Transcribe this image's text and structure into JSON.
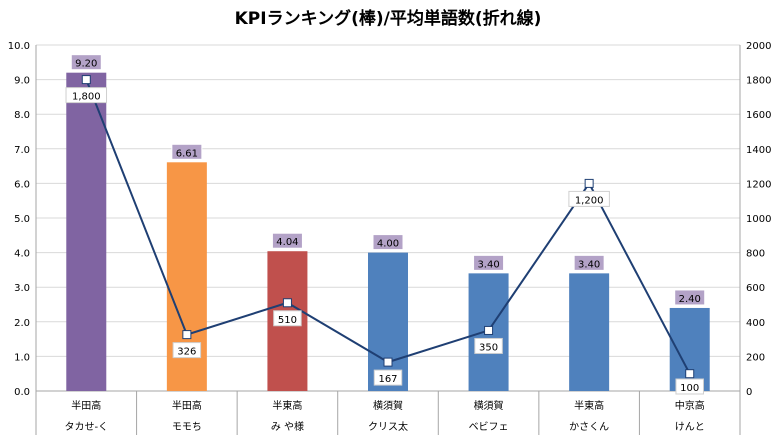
{
  "chart_data": {
    "type": "bar+line",
    "title": "KPIランキング(棒)/平均単語数(折れ線)",
    "categories": [
      [
        "半田高",
        "タカせ‐く"
      ],
      [
        "半田高",
        "モモち"
      ],
      [
        "半東高",
        "み や様"
      ],
      [
        "横須賀",
        "クリス太"
      ],
      [
        "横須賀",
        "ベビフェ"
      ],
      [
        "半東高",
        "かさくん"
      ],
      [
        "中京高",
        "けんと"
      ]
    ],
    "bar_series": {
      "axis": "left",
      "values": [
        9.2,
        6.61,
        4.04,
        4.0,
        3.4,
        3.4,
        2.4
      ],
      "labels": [
        "9.20",
        "6.61",
        "4.04",
        "4.00",
        "3.40",
        "3.40",
        "2.40"
      ],
      "colors": [
        "#8064a2",
        "#f79646",
        "#c0504d",
        "#4f81bd",
        "#4f81bd",
        "#4f81bd",
        "#4f81bd"
      ]
    },
    "line_series": {
      "axis": "right",
      "values": [
        1800,
        326,
        510,
        167,
        350,
        1200,
        100
      ],
      "labels": [
        "1,800",
        "326",
        "510",
        "167",
        "350",
        "1,200",
        "100"
      ],
      "color": "#1f3f73"
    },
    "left_axis": {
      "min": 0,
      "max": 10,
      "ticks": [
        "0.0",
        "1.0",
        "2.0",
        "3.0",
        "4.0",
        "5.0",
        "6.0",
        "7.0",
        "8.0",
        "9.0",
        "10.0"
      ]
    },
    "right_axis": {
      "min": 0,
      "max": 2000,
      "ticks": [
        "0",
        "200",
        "400",
        "600",
        "800",
        "1000",
        "1200",
        "1400",
        "1600",
        "1800",
        "2000"
      ]
    },
    "grid": true,
    "legend": "none"
  }
}
